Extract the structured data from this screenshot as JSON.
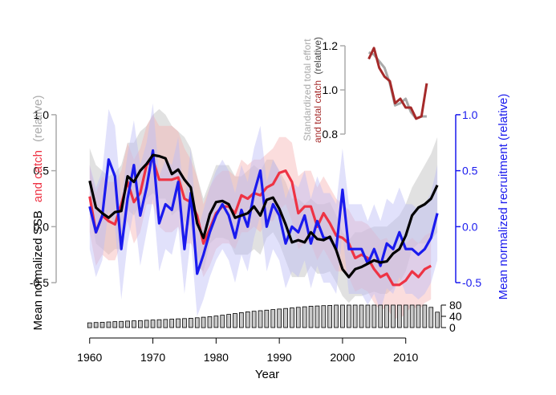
{
  "colors": {
    "ssb": "#000000",
    "catch": "#ee3344",
    "recruitment": "#1a1aee",
    "ssb_band": "#bdbdbd",
    "catch_band": "#f7b3b3",
    "recruitment_band": "#bcbcf7",
    "inset_effort": "#a9a9a9",
    "inset_catch": "#a52a2a",
    "bars": "#c8c8c8"
  },
  "chart_data": {
    "type": "line",
    "xlabel": "Year",
    "x_ticks": [
      1960,
      1970,
      1980,
      1990,
      2000,
      2010
    ],
    "xlim": [
      1958,
      2016
    ],
    "left_axis": {
      "label_parts": [
        "Mean normalized SSB",
        "and catch",
        "(relative)"
      ],
      "ticks": [
        "-0.5",
        "0.0",
        "0.5",
        "1.0"
      ],
      "ylim": [
        -0.6,
        1.2
      ]
    },
    "right_axis": {
      "label": "Mean normalized recruitment (relative)",
      "ticks": [
        "-0.5",
        "0.0",
        "0.5",
        "1.0"
      ],
      "ylim": [
        -0.6,
        1.2
      ]
    },
    "series": [
      {
        "name": "SSB",
        "years": [
          1960,
          1961,
          1962,
          1963,
          1964,
          1965,
          1966,
          1967,
          1968,
          1969,
          1970,
          1971,
          1972,
          1973,
          1974,
          1975,
          1976,
          1977,
          1978,
          1979,
          1980,
          1981,
          1982,
          1983,
          1984,
          1985,
          1986,
          1987,
          1988,
          1989,
          1990,
          1991,
          1992,
          1993,
          1994,
          1995,
          1996,
          1997,
          1998,
          1999,
          2000,
          2001,
          2002,
          2003,
          2004,
          2005,
          2006,
          2007,
          2008,
          2009,
          2010,
          2011,
          2012,
          2013,
          2014,
          2015
        ],
        "values": [
          0.41,
          0.17,
          0.12,
          0.08,
          0.13,
          0.14,
          0.45,
          0.4,
          0.5,
          0.56,
          0.64,
          0.63,
          0.61,
          0.47,
          0.51,
          0.42,
          0.35,
          0.03,
          -0.1,
          0.11,
          0.22,
          0.23,
          0.2,
          0.08,
          0.1,
          0.12,
          0.18,
          0.1,
          0.24,
          0.26,
          0.16,
          0.02,
          -0.14,
          -0.12,
          -0.14,
          -0.05,
          -0.11,
          -0.12,
          -0.09,
          -0.21,
          -0.38,
          -0.45,
          -0.38,
          -0.36,
          -0.33,
          -0.3,
          -0.32,
          -0.31,
          -0.24,
          -0.2,
          -0.08,
          0.1,
          0.17,
          0.2,
          0.25,
          0.37
        ],
        "upper": [
          0.7,
          0.55,
          0.5,
          0.45,
          0.48,
          0.55,
          0.75,
          0.75,
          0.85,
          0.9,
          1.0,
          1.05,
          1.0,
          0.9,
          0.85,
          0.8,
          0.7,
          0.45,
          0.25,
          0.4,
          0.55,
          0.55,
          0.55,
          0.45,
          0.45,
          0.5,
          0.55,
          0.5,
          0.6,
          0.6,
          0.5,
          0.4,
          0.25,
          0.25,
          0.2,
          0.25,
          0.2,
          0.2,
          0.22,
          0.1,
          -0.05,
          -0.12,
          -0.05,
          -0.05,
          -0.02,
          0.0,
          0.0,
          0.0,
          0.05,
          0.1,
          0.2,
          0.35,
          0.45,
          0.55,
          0.65,
          0.8
        ],
        "lower": [
          0.15,
          -0.15,
          -0.2,
          -0.25,
          -0.2,
          -0.2,
          0.15,
          0.1,
          0.2,
          0.25,
          0.3,
          0.25,
          0.25,
          0.1,
          0.15,
          0.05,
          0.0,
          -0.35,
          -0.4,
          -0.15,
          -0.1,
          -0.1,
          -0.12,
          -0.25,
          -0.25,
          -0.25,
          -0.2,
          -0.25,
          -0.1,
          -0.05,
          -0.15,
          -0.3,
          -0.45,
          -0.45,
          -0.45,
          -0.35,
          -0.42,
          -0.42,
          -0.4,
          -0.5,
          -0.62,
          -0.68,
          -0.62,
          -0.62,
          -0.6,
          -0.58,
          -0.6,
          -0.6,
          -0.55,
          -0.5,
          -0.4,
          -0.2,
          -0.15,
          -0.15,
          -0.12,
          -0.05
        ]
      },
      {
        "name": "catch",
        "years": [
          1960,
          1961,
          1962,
          1963,
          1964,
          1965,
          1966,
          1967,
          1968,
          1969,
          1970,
          1971,
          1972,
          1973,
          1974,
          1975,
          1976,
          1977,
          1978,
          1979,
          1980,
          1981,
          1982,
          1983,
          1984,
          1985,
          1986,
          1987,
          1988,
          1989,
          1990,
          1991,
          1992,
          1993,
          1994,
          1995,
          1996,
          1997,
          1998,
          1999,
          2000,
          2001,
          2002,
          2003,
          2004,
          2005,
          2006,
          2007,
          2008,
          2009,
          2010,
          2011,
          2012,
          2013,
          2014
        ],
        "values": [
          0.27,
          -0.05,
          0.1,
          0.05,
          0.02,
          0.2,
          0.4,
          0.22,
          0.3,
          0.55,
          0.6,
          0.42,
          0.42,
          0.42,
          0.44,
          0.25,
          0.22,
          0.1,
          -0.15,
          -0.02,
          0.12,
          0.18,
          0.18,
          0.12,
          0.28,
          0.25,
          0.3,
          0.28,
          0.35,
          0.38,
          0.48,
          0.5,
          0.4,
          0.12,
          0.18,
          0.18,
          0.0,
          0.12,
          0.03,
          -0.08,
          -0.1,
          -0.15,
          -0.28,
          -0.25,
          -0.28,
          -0.38,
          -0.45,
          -0.42,
          -0.52,
          -0.52,
          -0.48,
          -0.4,
          -0.45,
          -0.38,
          -0.35
        ],
        "upper": [
          0.55,
          0.3,
          0.45,
          0.4,
          0.4,
          0.5,
          0.75,
          0.6,
          0.7,
          0.9,
          1.0,
          0.9,
          0.9,
          0.9,
          0.85,
          0.7,
          0.6,
          0.45,
          0.2,
          0.35,
          0.45,
          0.5,
          0.5,
          0.45,
          0.6,
          0.55,
          0.6,
          0.6,
          0.65,
          0.7,
          0.8,
          0.8,
          0.75,
          0.45,
          0.5,
          0.5,
          0.35,
          0.45,
          0.35,
          0.25,
          0.2,
          0.15,
          0.05,
          0.05,
          0.02,
          -0.05,
          -0.12,
          -0.1,
          -0.2,
          -0.2,
          -0.15,
          -0.1,
          -0.15,
          -0.08,
          -0.05
        ],
        "lower": [
          -0.05,
          -0.35,
          -0.25,
          -0.3,
          -0.3,
          -0.15,
          0.05,
          -0.15,
          -0.05,
          0.2,
          0.2,
          0.0,
          -0.05,
          -0.05,
          0.0,
          -0.15,
          -0.15,
          -0.25,
          -0.45,
          -0.35,
          -0.2,
          -0.15,
          -0.15,
          -0.2,
          -0.05,
          -0.05,
          0.0,
          -0.05,
          0.05,
          0.05,
          0.15,
          0.2,
          0.05,
          -0.2,
          -0.15,
          -0.15,
          -0.3,
          -0.2,
          -0.3,
          -0.4,
          -0.4,
          -0.45,
          -0.58,
          -0.55,
          -0.58,
          -0.68,
          -0.75,
          -0.72,
          -0.82,
          -0.82,
          -0.78,
          -0.7,
          -0.75,
          -0.68,
          -0.65
        ]
      },
      {
        "name": "recruitment",
        "years": [
          1960,
          1961,
          1962,
          1963,
          1964,
          1965,
          1966,
          1967,
          1968,
          1969,
          1970,
          1971,
          1972,
          1973,
          1974,
          1975,
          1976,
          1977,
          1978,
          1979,
          1980,
          1981,
          1982,
          1983,
          1984,
          1985,
          1986,
          1987,
          1988,
          1989,
          1990,
          1991,
          1992,
          1993,
          1994,
          1995,
          1996,
          1997,
          1998,
          1999,
          2000,
          2001,
          2002,
          2003,
          2004,
          2005,
          2006,
          2007,
          2008,
          2009,
          2010,
          2011,
          2012,
          2013,
          2014,
          2015
        ],
        "values": [
          0.18,
          -0.05,
          0.1,
          0.6,
          0.45,
          -0.2,
          0.25,
          0.55,
          0.1,
          0.35,
          0.68,
          0.03,
          0.2,
          0.15,
          0.4,
          -0.2,
          0.3,
          -0.42,
          -0.25,
          -0.05,
          0.1,
          0.2,
          0.1,
          -0.1,
          0.15,
          0.0,
          0.3,
          0.5,
          0.0,
          0.2,
          0.1,
          -0.15,
          0.0,
          -0.05,
          0.1,
          -0.15,
          0.05,
          -0.1,
          -0.1,
          -0.2,
          0.33,
          -0.2,
          -0.2,
          -0.2,
          -0.33,
          -0.2,
          -0.35,
          -0.15,
          -0.2,
          -0.05,
          -0.2,
          -0.2,
          -0.25,
          -0.2,
          -0.1,
          0.12
        ],
        "upper": [
          0.55,
          0.35,
          0.5,
          1.05,
          0.9,
          0.25,
          0.65,
          0.95,
          0.55,
          0.75,
          1.1,
          0.45,
          0.6,
          0.55,
          0.8,
          0.2,
          0.7,
          -0.05,
          0.15,
          0.35,
          0.5,
          0.6,
          0.5,
          0.3,
          0.55,
          0.4,
          0.7,
          0.9,
          0.4,
          0.6,
          0.5,
          0.25,
          0.4,
          0.35,
          0.5,
          0.25,
          0.45,
          0.3,
          0.3,
          0.2,
          0.7,
          0.2,
          0.2,
          0.2,
          0.05,
          0.2,
          0.05,
          0.25,
          0.2,
          0.35,
          0.2,
          0.2,
          0.15,
          0.2,
          0.3,
          0.55
        ],
        "lower": [
          -0.2,
          -0.45,
          -0.3,
          0.15,
          0.0,
          -0.65,
          -0.15,
          0.15,
          -0.35,
          -0.05,
          0.25,
          -0.4,
          -0.2,
          -0.25,
          0.0,
          -0.6,
          -0.1,
          -0.8,
          -0.65,
          -0.45,
          -0.3,
          -0.2,
          -0.3,
          -0.5,
          -0.25,
          -0.4,
          -0.1,
          0.1,
          -0.4,
          -0.2,
          -0.3,
          -0.55,
          -0.4,
          -0.45,
          -0.3,
          -0.55,
          -0.35,
          -0.5,
          -0.5,
          -0.6,
          -0.05,
          -0.6,
          -0.6,
          -0.6,
          -0.7,
          -0.6,
          -0.75,
          -0.55,
          -0.6,
          -0.45,
          -0.6,
          -0.6,
          -0.65,
          -0.6,
          -0.5,
          -0.3
        ]
      }
    ],
    "bars": {
      "axis_ticks": [
        "80",
        "40",
        "0"
      ],
      "ylim": [
        0,
        80
      ],
      "years": [
        1960,
        1961,
        1962,
        1963,
        1964,
        1965,
        1966,
        1967,
        1968,
        1969,
        1970,
        1971,
        1972,
        1973,
        1974,
        1975,
        1976,
        1977,
        1978,
        1979,
        1980,
        1981,
        1982,
        1983,
        1984,
        1985,
        1986,
        1987,
        1988,
        1989,
        1990,
        1991,
        1992,
        1993,
        1994,
        1995,
        1996,
        1997,
        1998,
        1999,
        2000,
        2001,
        2002,
        2003,
        2004,
        2005,
        2006,
        2007,
        2008,
        2009,
        2010,
        2011,
        2012,
        2013,
        2014,
        2015
      ],
      "values": [
        17,
        18,
        19,
        20,
        21,
        22,
        23,
        24,
        25,
        26,
        27,
        28,
        29,
        30,
        31,
        32,
        33,
        35,
        37,
        39,
        41,
        44,
        47,
        50,
        53,
        56,
        58,
        60,
        62,
        64,
        66,
        68,
        70,
        72,
        74,
        76,
        77,
        78,
        79,
        80,
        80,
        80,
        80,
        80,
        80,
        80,
        80,
        80,
        80,
        80,
        80,
        80,
        80,
        80,
        72,
        55
      ]
    },
    "inset": {
      "title_parts": [
        "Standardized total effort",
        "and total catch",
        "(relative)"
      ],
      "ticks": [
        "0.8",
        "1.0",
        "1.2"
      ],
      "ylim": [
        0.8,
        1.2
      ],
      "xlim": [
        2002,
        2016
      ],
      "series": [
        {
          "name": "Standardized total effort",
          "years": [
            2003,
            2004,
            2005,
            2006,
            2007,
            2008,
            2009,
            2010,
            2011,
            2012,
            2013,
            2014
          ],
          "values": [
            1.17,
            1.16,
            1.13,
            1.1,
            1.03,
            0.93,
            0.94,
            0.96,
            0.9,
            0.87,
            0.88,
            0.88
          ]
        },
        {
          "name": "total catch",
          "years": [
            2003,
            2004,
            2005,
            2006,
            2007,
            2008,
            2009,
            2010,
            2011,
            2012,
            2013,
            2014
          ],
          "values": [
            1.14,
            1.19,
            1.1,
            1.06,
            1.04,
            0.94,
            0.96,
            0.92,
            0.92,
            0.87,
            0.88,
            1.03
          ]
        }
      ]
    }
  }
}
